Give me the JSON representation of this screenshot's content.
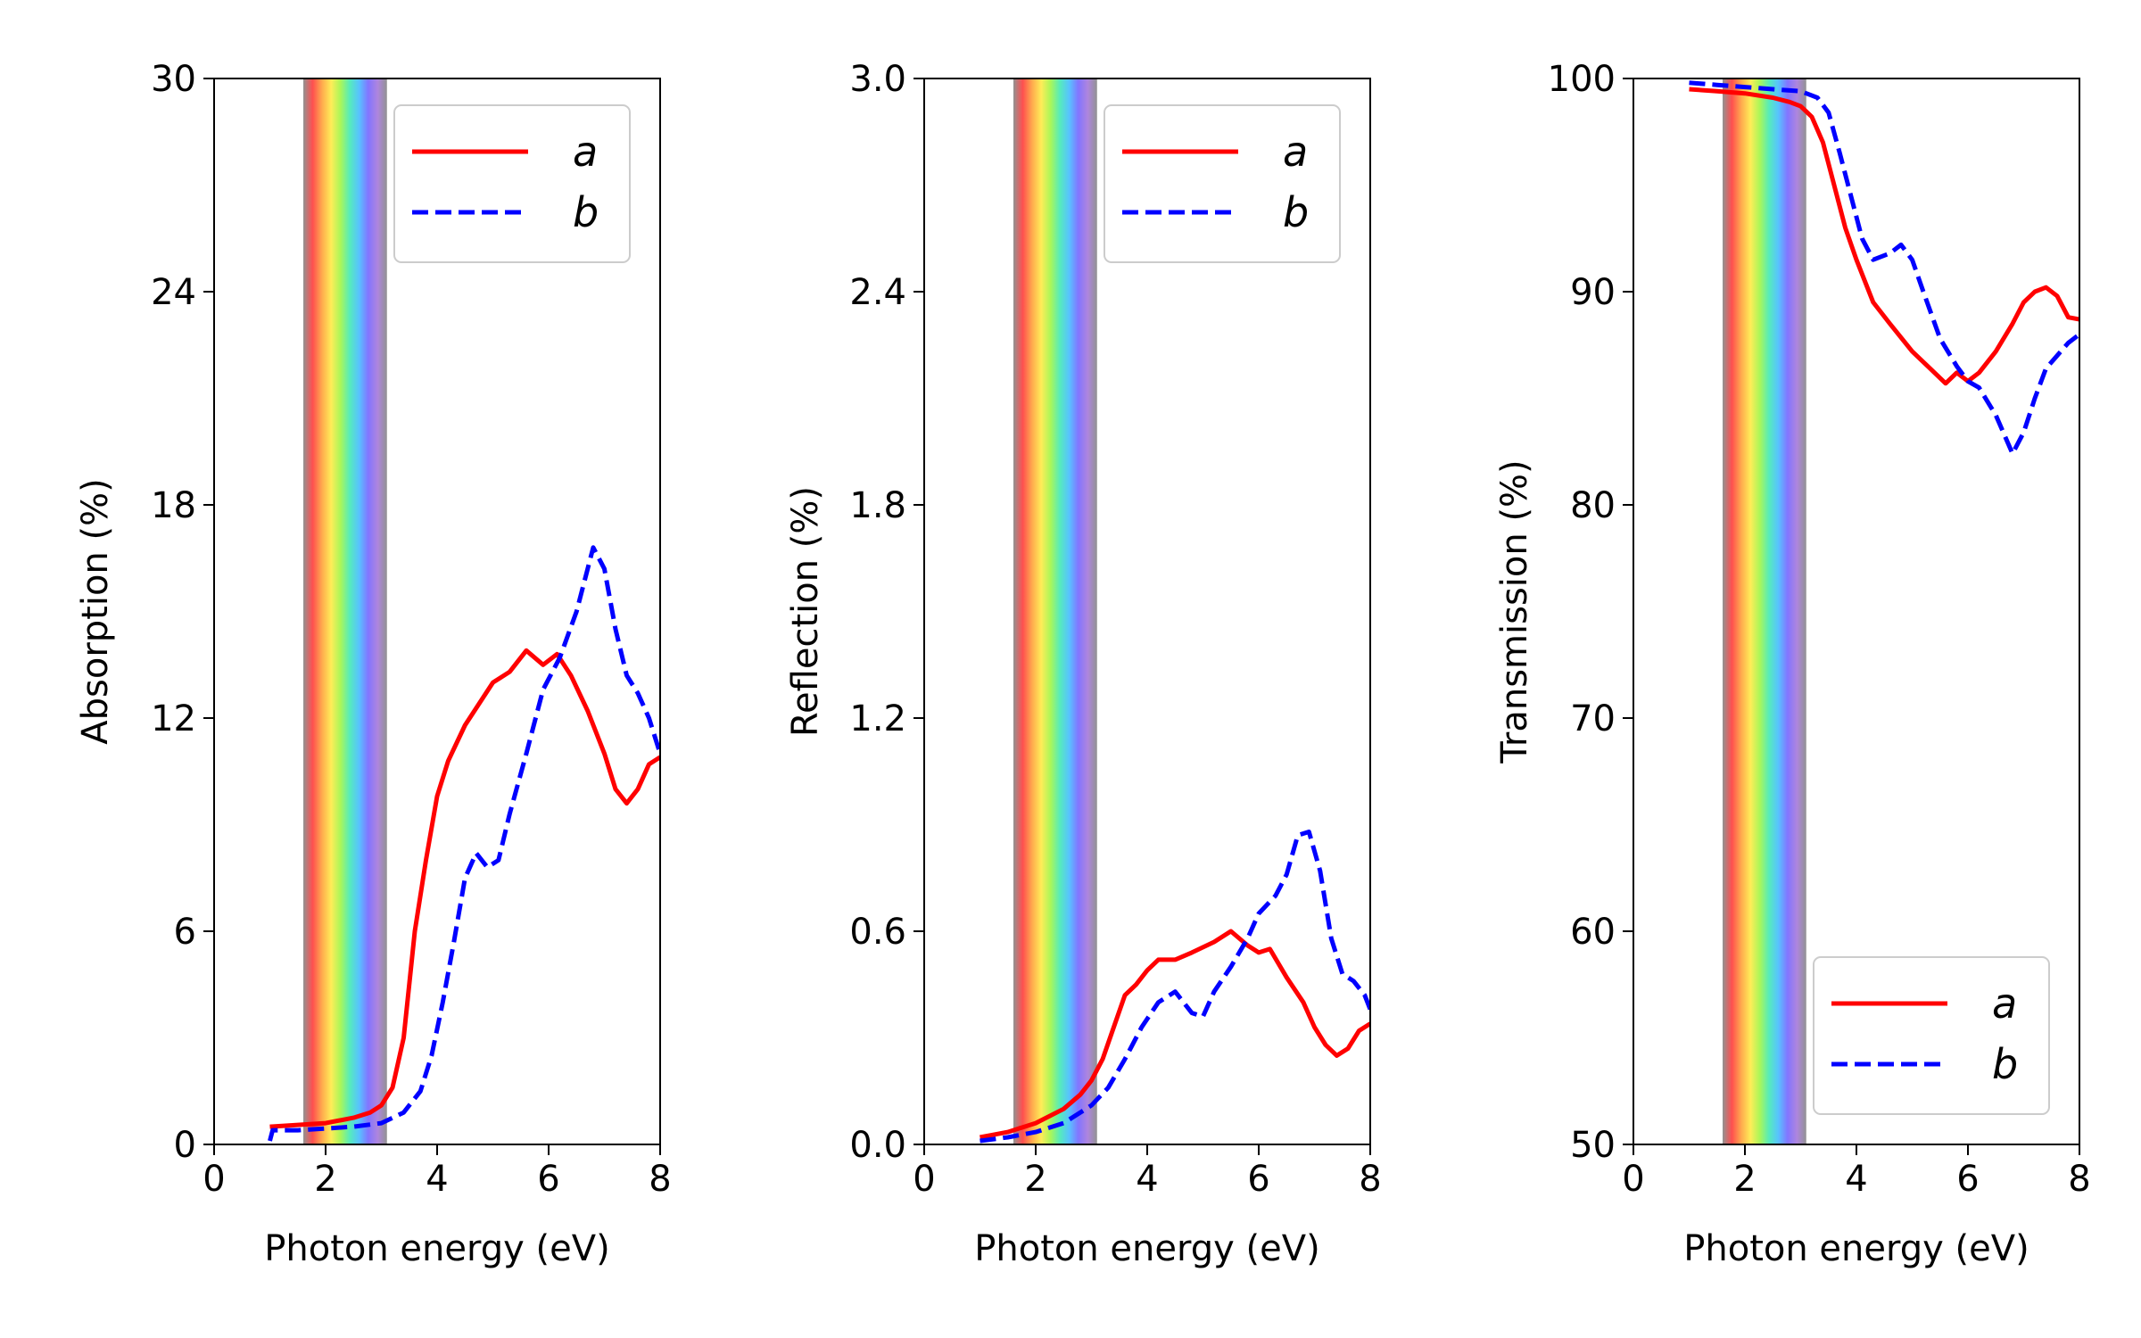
{
  "colors": {
    "a": "#ff0000",
    "b": "#0000ff",
    "visible_band": [
      "#7f7f7f",
      "#ff3030",
      "#ff9a2e",
      "#ffe93a",
      "#9cf53a",
      "#38e8b0",
      "#3ab8ff",
      "#6d5cff",
      "#a070d8",
      "#7f7f7f"
    ]
  },
  "chart_data": [
    {
      "type": "line",
      "xlabel": "Photon energy (eV)",
      "ylabel": "Absorption (%)",
      "xlim": [
        0,
        8
      ],
      "ylim": [
        0,
        30
      ],
      "xticks": [
        "0",
        "2",
        "4",
        "6",
        "8"
      ],
      "yticks": [
        "0",
        "6",
        "12",
        "18",
        "24",
        "30"
      ],
      "legend_position": "upper-right",
      "visible_band": [
        1.6,
        3.1
      ],
      "series": [
        {
          "name": "a",
          "style": "solid",
          "x": [
            1.0,
            1.5,
            2.0,
            2.5,
            2.8,
            3.0,
            3.2,
            3.4,
            3.6,
            3.8,
            4.0,
            4.2,
            4.5,
            5.0,
            5.3,
            5.6,
            5.9,
            6.15,
            6.4,
            6.7,
            7.0,
            7.2,
            7.4,
            7.6,
            7.8,
            8.0
          ],
          "y": [
            0.5,
            0.55,
            0.6,
            0.75,
            0.9,
            1.1,
            1.6,
            3.0,
            6.0,
            8.0,
            9.8,
            10.8,
            11.8,
            13.0,
            13.3,
            13.9,
            13.5,
            13.8,
            13.2,
            12.2,
            11.0,
            10.0,
            9.6,
            10.0,
            10.7,
            10.9
          ]
        },
        {
          "name": "b",
          "style": "dashed",
          "x": [
            1.0,
            1.05,
            1.5,
            2.0,
            2.5,
            3.0,
            3.4,
            3.7,
            3.9,
            4.1,
            4.3,
            4.5,
            4.7,
            4.9,
            5.1,
            5.3,
            5.6,
            5.9,
            6.2,
            6.5,
            6.8,
            7.0,
            7.2,
            7.4,
            7.6,
            7.8,
            8.0
          ],
          "y": [
            0.1,
            0.4,
            0.4,
            0.45,
            0.5,
            0.6,
            0.9,
            1.5,
            2.5,
            4.0,
            5.7,
            7.5,
            8.2,
            7.8,
            8.0,
            9.3,
            11.0,
            12.8,
            13.7,
            15.0,
            16.8,
            16.2,
            14.5,
            13.2,
            12.7,
            12.0,
            11.0
          ]
        }
      ]
    },
    {
      "type": "line",
      "xlabel": "Photon energy (eV)",
      "ylabel": "Reflection (%)",
      "xlim": [
        0,
        8
      ],
      "ylim": [
        0,
        3.0
      ],
      "xticks": [
        "0",
        "2",
        "4",
        "6",
        "8"
      ],
      "yticks": [
        "0.0",
        "0.6",
        "1.2",
        "1.8",
        "2.4",
        "3.0"
      ],
      "legend_position": "upper-right",
      "visible_band": [
        1.6,
        3.1
      ],
      "series": [
        {
          "name": "a",
          "style": "solid",
          "x": [
            1.0,
            1.5,
            2.0,
            2.5,
            2.8,
            3.0,
            3.2,
            3.4,
            3.6,
            3.8,
            4.0,
            4.2,
            4.5,
            4.8,
            5.2,
            5.5,
            5.8,
            6.0,
            6.2,
            6.5,
            6.8,
            7.0,
            7.2,
            7.4,
            7.6,
            7.8,
            8.0
          ],
          "y": [
            0.02,
            0.035,
            0.06,
            0.1,
            0.14,
            0.18,
            0.24,
            0.33,
            0.42,
            0.45,
            0.49,
            0.52,
            0.52,
            0.54,
            0.57,
            0.6,
            0.56,
            0.54,
            0.55,
            0.47,
            0.4,
            0.33,
            0.28,
            0.25,
            0.27,
            0.32,
            0.34
          ]
        },
        {
          "name": "b",
          "style": "dashed",
          "x": [
            1.0,
            1.5,
            2.0,
            2.5,
            3.0,
            3.3,
            3.6,
            3.9,
            4.2,
            4.5,
            4.8,
            5.0,
            5.2,
            5.5,
            5.8,
            6.0,
            6.3,
            6.5,
            6.7,
            6.9,
            7.1,
            7.3,
            7.5,
            7.7,
            7.9,
            8.0
          ],
          "y": [
            0.01,
            0.02,
            0.035,
            0.06,
            0.11,
            0.16,
            0.24,
            0.33,
            0.4,
            0.43,
            0.37,
            0.36,
            0.43,
            0.5,
            0.58,
            0.65,
            0.7,
            0.76,
            0.87,
            0.88,
            0.77,
            0.58,
            0.48,
            0.46,
            0.42,
            0.38
          ]
        }
      ]
    },
    {
      "type": "line",
      "xlabel": "Photon energy (eV)",
      "ylabel": "Transmission (%)",
      "xlim": [
        0,
        8
      ],
      "ylim": [
        50,
        100
      ],
      "xticks": [
        "0",
        "2",
        "4",
        "6",
        "8"
      ],
      "yticks": [
        "50",
        "60",
        "70",
        "80",
        "90",
        "100"
      ],
      "legend_position": "lower-right",
      "visible_band": [
        1.6,
        3.1
      ],
      "series": [
        {
          "name": "a",
          "style": "solid",
          "x": [
            1.0,
            1.5,
            2.0,
            2.5,
            2.8,
            3.0,
            3.2,
            3.4,
            3.6,
            3.8,
            4.0,
            4.3,
            4.6,
            5.0,
            5.4,
            5.6,
            5.8,
            6.0,
            6.2,
            6.5,
            6.8,
            7.0,
            7.2,
            7.4,
            7.6,
            7.8,
            8.0
          ],
          "y": [
            99.5,
            99.4,
            99.3,
            99.1,
            98.9,
            98.7,
            98.2,
            97.0,
            95.0,
            93.0,
            91.5,
            89.5,
            88.5,
            87.2,
            86.2,
            85.7,
            86.2,
            85.8,
            86.2,
            87.2,
            88.5,
            89.5,
            90.0,
            90.2,
            89.8,
            88.8,
            88.7
          ]
        },
        {
          "name": "b",
          "style": "dashed",
          "x": [
            1.0,
            1.5,
            2.0,
            2.5,
            3.0,
            3.3,
            3.5,
            3.7,
            3.9,
            4.1,
            4.3,
            4.6,
            4.8,
            5.0,
            5.2,
            5.5,
            5.8,
            6.0,
            6.2,
            6.5,
            6.8,
            7.0,
            7.2,
            7.4,
            7.6,
            7.8,
            8.0
          ],
          "y": [
            99.8,
            99.7,
            99.6,
            99.5,
            99.4,
            99.1,
            98.4,
            96.5,
            94.5,
            92.5,
            91.5,
            91.8,
            92.2,
            91.5,
            90.0,
            87.8,
            86.5,
            85.8,
            85.5,
            84.2,
            82.4,
            83.4,
            85.0,
            86.4,
            87.0,
            87.6,
            88.0
          ]
        }
      ]
    }
  ]
}
